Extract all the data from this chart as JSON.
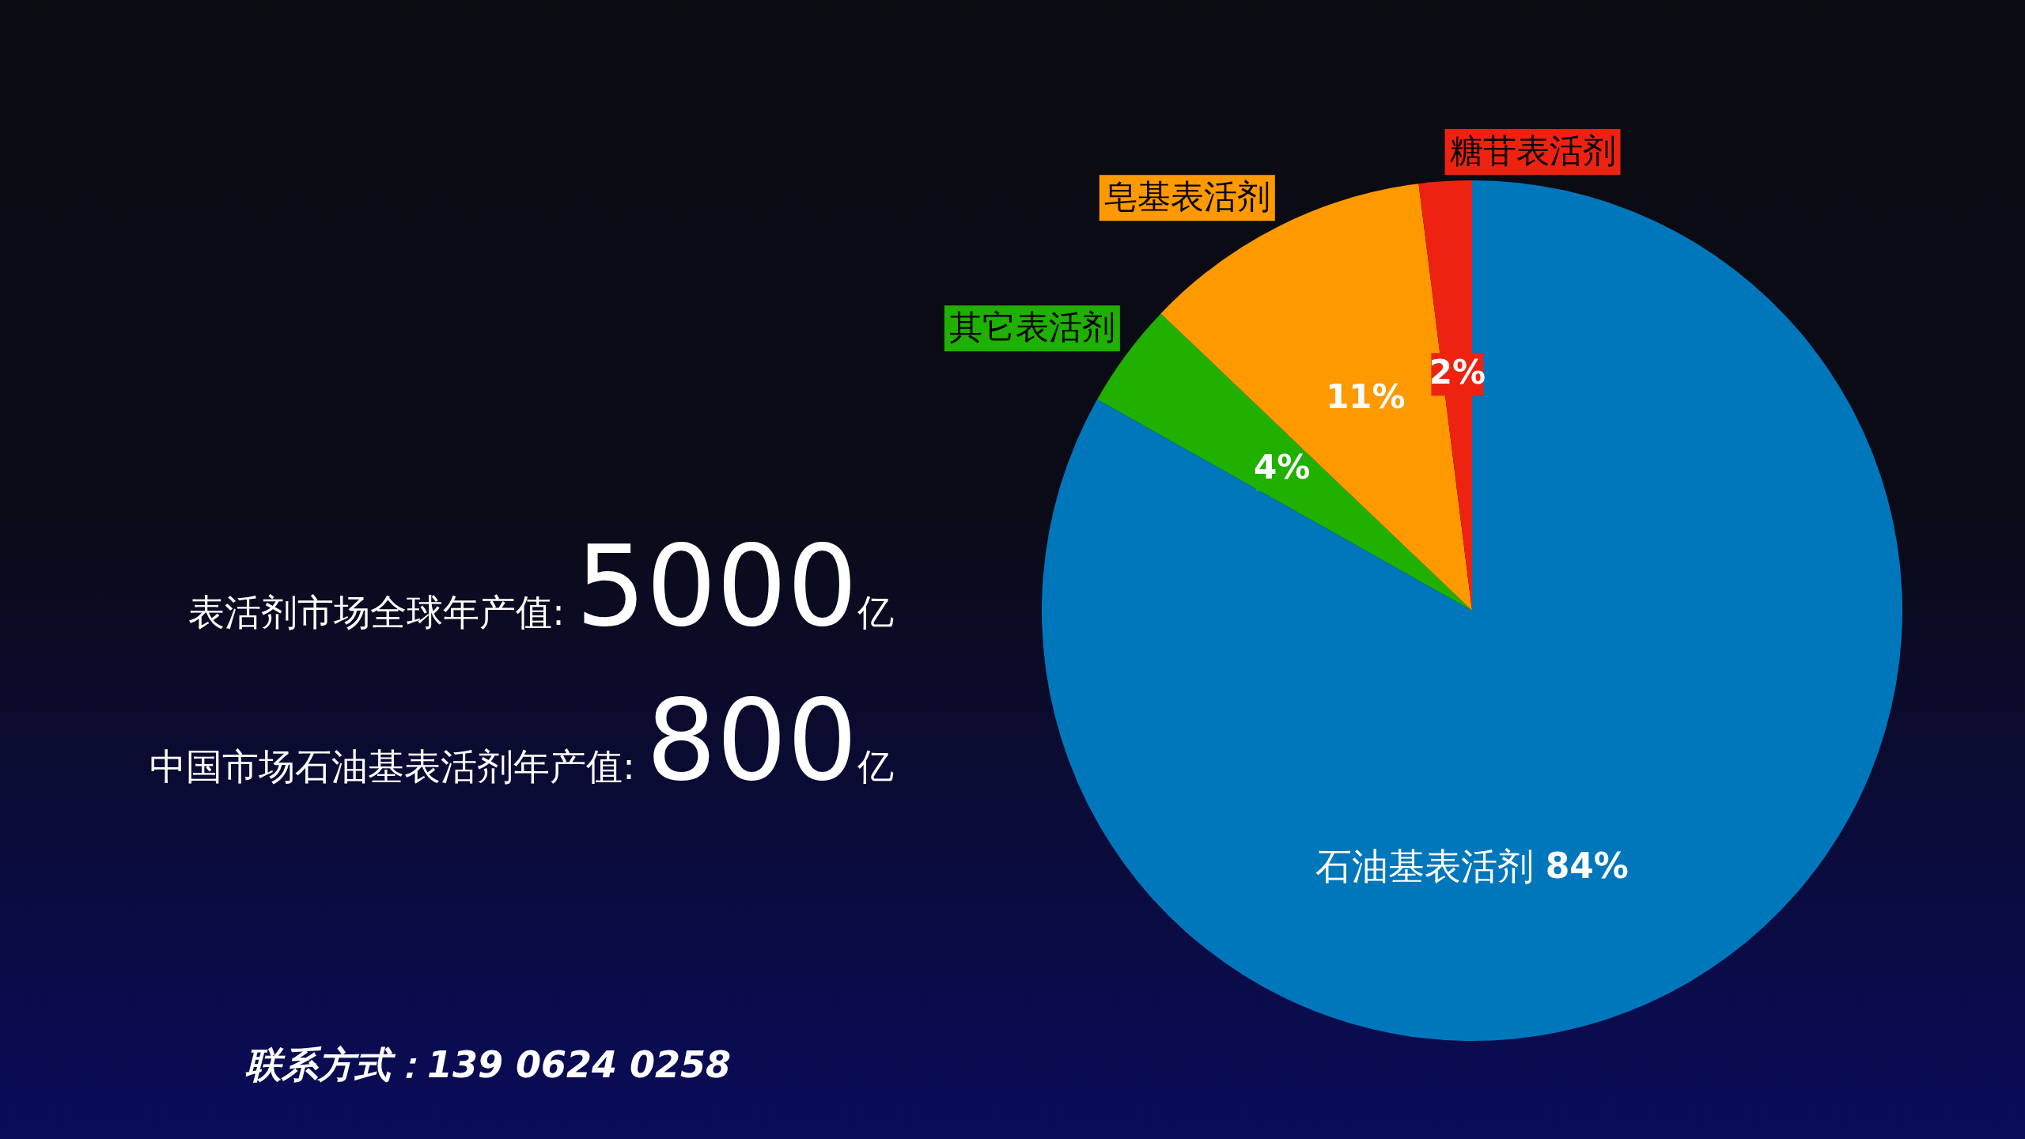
{
  "chart_data": {
    "type": "pie",
    "categories": [
      "石油基表活剂",
      "其它表活剂",
      "皂基表活剂",
      "糖苷表活剂"
    ],
    "values": [
      84,
      4,
      11,
      2
    ],
    "value_labels": [
      "84%",
      "4%",
      "11%",
      "2%"
    ],
    "colors": [
      "#0077bb",
      "#1fb000",
      "#ff9900",
      "#ee2211"
    ],
    "annotations": [
      "表活剂市场全球年产值:5000亿",
      "中国市场石油基表活剂年产值:800亿",
      "联系方式：139 0624 0258"
    ]
  }
}
